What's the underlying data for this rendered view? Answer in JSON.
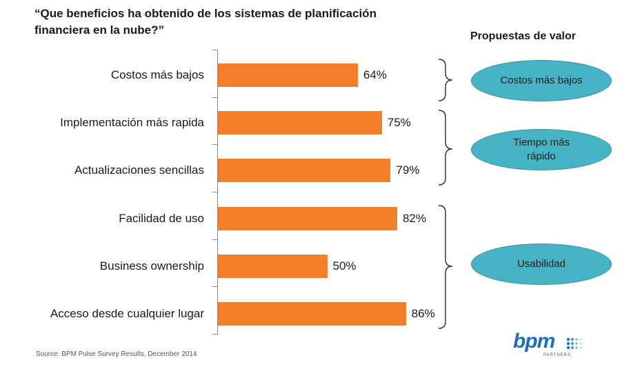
{
  "title": {
    "line1": "“Que beneficios  ha obtenido de los sistemas  de planificación",
    "line2": "financiera  en la nube?”"
  },
  "value_props": {
    "title": "Propuestas  de valor",
    "items": [
      {
        "label": "Costos más bajos"
      },
      {
        "label": "Tiempo más rápido"
      },
      {
        "label": "Usabilidad"
      }
    ]
  },
  "chart_data": {
    "type": "bar",
    "orientation": "horizontal",
    "title": "“Que beneficios  ha obtenido de los sistemas  de planificación financiera  en la nube?”",
    "categories": [
      "Costos más bajos",
      "Implementación más rapida",
      "Actualizaciones sencillas",
      "Facilidad de uso",
      "Business ownership",
      "Acceso desde cualquier lugar"
    ],
    "values": [
      64,
      75,
      79,
      82,
      50,
      86
    ],
    "value_labels": [
      "64%",
      "75%",
      "79%",
      "82%",
      "50%",
      "86%"
    ],
    "xlim": [
      0,
      100
    ],
    "color": "#f47f2a",
    "grid": false
  },
  "source": "Source: BPM Pulse Survey Results, December 2014",
  "logo": {
    "text": "bpm",
    "subtext": "PARTNERS",
    "color": "#1b6fc0"
  }
}
